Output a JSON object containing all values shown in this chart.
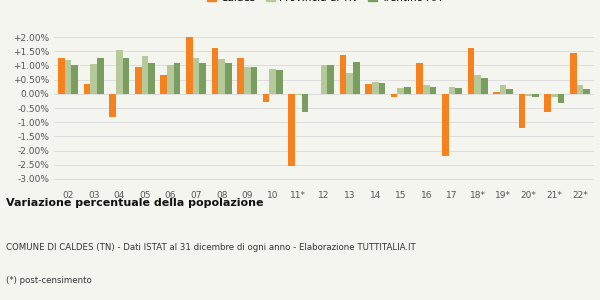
{
  "years": [
    "02",
    "03",
    "04",
    "05",
    "06",
    "07",
    "08",
    "09",
    "10",
    "11*",
    "12",
    "13",
    "14",
    "15",
    "16",
    "17",
    "18*",
    "19*",
    "20*",
    "21*",
    "22*"
  ],
  "caldes": [
    1.25,
    0.35,
    -0.8,
    0.95,
    0.65,
    2.0,
    1.63,
    1.28,
    -0.3,
    -2.55,
    0.0,
    1.37,
    0.35,
    -0.1,
    1.07,
    -2.2,
    1.62,
    0.07,
    -1.2,
    -0.63,
    1.45
  ],
  "provincia": [
    1.2,
    1.05,
    1.55,
    1.35,
    1.0,
    1.27,
    1.23,
    0.93,
    0.87,
    -0.05,
    1.02,
    0.73,
    0.42,
    0.22,
    0.3,
    0.23,
    0.65,
    0.3,
    -0.08,
    -0.1,
    0.3
  ],
  "trentino": [
    1.03,
    1.27,
    1.27,
    1.1,
    1.1,
    1.1,
    1.1,
    0.95,
    0.85,
    -0.65,
    1.0,
    1.12,
    0.38,
    0.25,
    0.23,
    0.21,
    0.57,
    0.18,
    -0.12,
    -0.32,
    0.17
  ],
  "caldes_color": "#f5821f",
  "provincia_color": "#b5c99a",
  "trentino_color": "#7a9e5f",
  "bg_color": "#f5f5f0",
  "grid_color": "#dddddd",
  "title_bold": "Variazione percentuale della popolazione",
  "subtitle": "COMUNE DI CALDES (TN) - Dati ISTAT al 31 dicembre di ogni anno - Elaborazione TUTTITALIA.IT",
  "footnote": "(*) post-censimento",
  "ylim": [
    -3.25,
    2.25
  ],
  "yticks": [
    -3.0,
    -2.5,
    -2.0,
    -1.5,
    -1.0,
    -0.5,
    0.0,
    0.5,
    1.0,
    1.5,
    2.0
  ]
}
